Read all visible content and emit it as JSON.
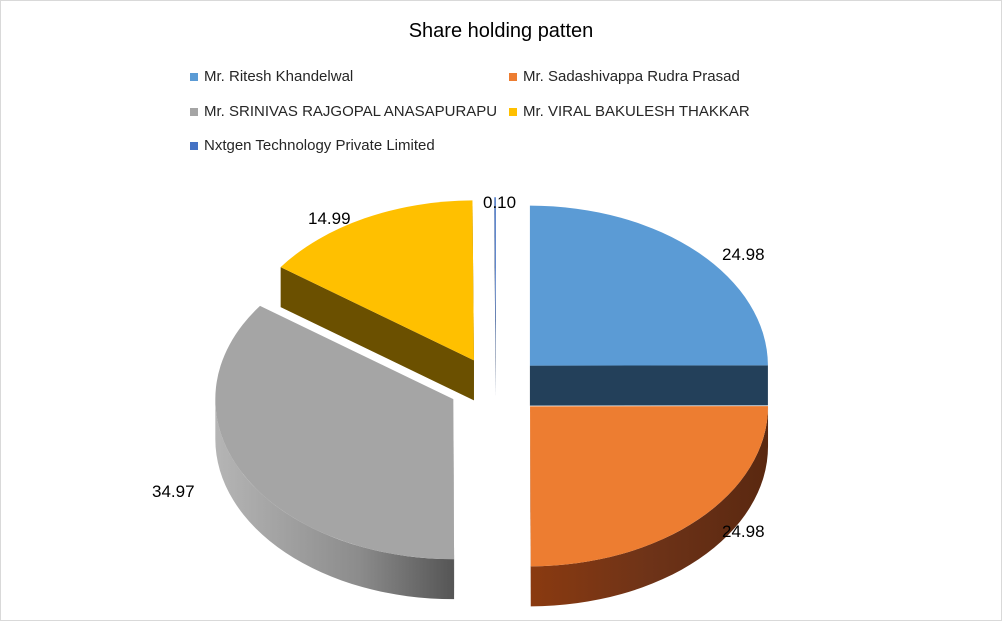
{
  "chart_data": {
    "type": "pie",
    "title": "Share holding patten",
    "legend_position": "top",
    "exploded": true,
    "style": "3d",
    "slices": [
      {
        "label": "Mr. Ritesh Khandelwal",
        "value": 24.98,
        "value_label": "24.98",
        "color": "#5B9BD5"
      },
      {
        "label": "Mr. Sadashivappa Rudra Prasad",
        "value": 24.98,
        "value_label": "24.98",
        "color": "#ED7D31"
      },
      {
        "label": "Mr. SRINIVAS RAJGOPAL ANASAPURAPU",
        "value": 34.97,
        "value_label": "34.97",
        "color": "#A5A5A5"
      },
      {
        "label": "Mr. VIRAL BAKULESH THAKKAR",
        "value": 14.99,
        "value_label": "14.99",
        "color": "#FFC000"
      },
      {
        "label": "Nxtgen Technology Private Limited",
        "value": 0.1,
        "value_label": "0.10",
        "color": "#4472C4"
      }
    ]
  }
}
